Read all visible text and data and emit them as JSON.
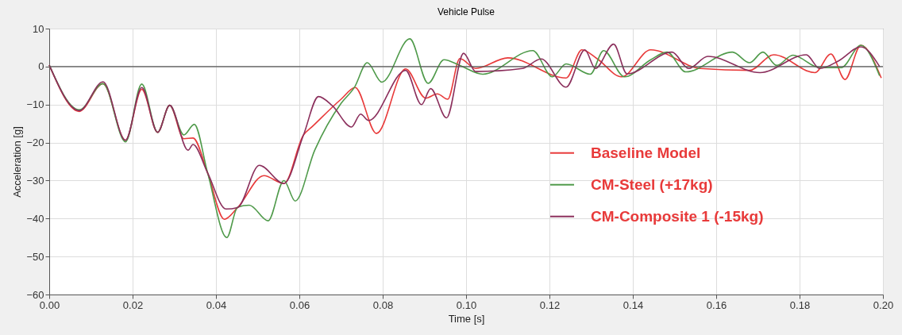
{
  "chart_data": {
    "type": "line",
    "title": "Vehicle Pulse",
    "xlabel": "Time [s]",
    "ylabel": "Acceleration [g]",
    "xlim": [
      0,
      0.2
    ],
    "xticks": [
      {
        "value": 0,
        "label": "0.00"
      },
      {
        "value": 0.02,
        "label": "0.02"
      },
      {
        "value": 0.04,
        "label": "0.04"
      },
      {
        "value": 0.06,
        "label": "0.06"
      },
      {
        "value": 0.08,
        "label": "0.08"
      },
      {
        "value": 0.1,
        "label": "0.10"
      },
      {
        "value": 0.12,
        "label": "0.12"
      },
      {
        "value": 0.14,
        "label": "0.14"
      },
      {
        "value": 0.16,
        "label": "0.16"
      },
      {
        "value": 0.18,
        "label": "0.18"
      },
      {
        "value": 0.2,
        "label": "0.20"
      }
    ],
    "ylim": [
      -60,
      10
    ],
    "yticks": [
      -60,
      -50,
      -40,
      -30,
      -20,
      -10,
      0,
      10
    ],
    "grid": true,
    "legend": "right",
    "marker": "none",
    "line_style": "solid",
    "ref_lines": [
      {
        "axis": "y",
        "value": 0,
        "color": "#555555"
      }
    ],
    "series": [
      {
        "name": "Baseline Model",
        "color": "#e83a3a",
        "x": [
          0,
          0.0072,
          0.0129,
          0.0183,
          0.0222,
          0.026,
          0.0289,
          0.0323,
          0.0345,
          0.038,
          0.042,
          0.0452,
          0.0515,
          0.0563,
          0.061,
          0.063,
          0.07,
          0.0734,
          0.0785,
          0.0855,
          0.0903,
          0.0931,
          0.0956,
          0.0985,
          0.1023,
          0.11,
          0.124,
          0.1278,
          0.1315,
          0.1373,
          0.1443,
          0.1562,
          0.168,
          0.1738,
          0.1837,
          0.1875,
          0.1909,
          0.1947,
          0.1996
        ],
        "values": [
          0.4,
          -11.8,
          -4.5,
          -19.4,
          -6,
          -17.3,
          -10.2,
          -19,
          -18.8,
          -28,
          -40.2,
          -37.1,
          -28.7,
          -30.8,
          -18,
          -15.9,
          -8.6,
          -5.5,
          -17.6,
          -0.6,
          -8.3,
          -7.2,
          -8.6,
          2.1,
          -0.5,
          2.3,
          -3,
          4.4,
          2,
          -2.7,
          4.4,
          -0.5,
          -1,
          3.1,
          -1.6,
          3.3,
          -3.4,
          5.6,
          -3
        ]
      },
      {
        "name": "CM-Steel (+17kg)",
        "color": "#4f9a4a",
        "x": [
          0,
          0.0072,
          0.0129,
          0.0183,
          0.0222,
          0.026,
          0.0289,
          0.0323,
          0.0348,
          0.038,
          0.0426,
          0.0452,
          0.048,
          0.0525,
          0.0563,
          0.059,
          0.0637,
          0.07,
          0.0732,
          0.0763,
          0.0798,
          0.0865,
          0.0909,
          0.0947,
          0.0985,
          0.104,
          0.116,
          0.1207,
          0.124,
          0.1298,
          0.133,
          0.138,
          0.1443,
          0.1482,
          0.1527,
          0.1639,
          0.168,
          0.1712,
          0.1745,
          0.1784,
          0.1848,
          0.19,
          0.1947,
          0.1992
        ],
        "values": [
          0.4,
          -11.4,
          -4.5,
          -19.8,
          -4.6,
          -17.3,
          -10.2,
          -18,
          -15.2,
          -28,
          -45,
          -37,
          -36.5,
          -40.6,
          -30,
          -35.4,
          -22,
          -9.7,
          -5.5,
          1,
          -4.1,
          7.3,
          -4.4,
          1.8,
          0.3,
          -2,
          4.2,
          -2.7,
          0.7,
          -2,
          4.2,
          -2.7,
          1.8,
          3.8,
          -1.4,
          3.8,
          1,
          3.8,
          0.3,
          3,
          -0.3,
          -0.3,
          5.6,
          -2.4
        ]
      },
      {
        "name": "CM-Composite 1 (-15kg)",
        "color": "#8b2f5c",
        "x": [
          0,
          0.0072,
          0.0129,
          0.0183,
          0.0222,
          0.026,
          0.0289,
          0.0333,
          0.0345,
          0.038,
          0.0424,
          0.0452,
          0.0504,
          0.0563,
          0.061,
          0.0646,
          0.068,
          0.0725,
          0.0747,
          0.0766,
          0.0855,
          0.0893,
          0.0915,
          0.0953,
          0.0994,
          0.1023,
          0.1135,
          0.118,
          0.124,
          0.1285,
          0.131,
          0.1354,
          0.1386,
          0.1494,
          0.1534,
          0.158,
          0.1705,
          0.1816,
          0.1848,
          0.1895,
          0.1947,
          0.1992
        ],
        "values": [
          0.4,
          -11.6,
          -4,
          -19.4,
          -5.5,
          -17.3,
          -10.2,
          -22,
          -20.5,
          -28,
          -37.5,
          -37.1,
          -26,
          -30.8,
          -18,
          -7.9,
          -10.4,
          -15.9,
          -12.5,
          -14.2,
          -1,
          -10,
          -5.8,
          -13.5,
          3.5,
          -1.3,
          -0.5,
          2,
          -5.4,
          4.4,
          -0.5,
          5.9,
          -1.9,
          3.8,
          -0.5,
          2.7,
          -1.6,
          3.1,
          -0.5,
          1.6,
          5.2,
          0
        ]
      }
    ]
  }
}
